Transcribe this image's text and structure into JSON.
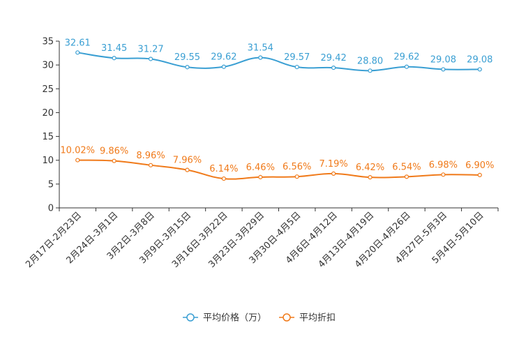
{
  "chart_data": {
    "type": "line",
    "categories": [
      "2月17日-2月23日",
      "2月24日-3月1日",
      "3月2日-3月8日",
      "3月9日-3月15日",
      "3月16日-3月22日",
      "3月23日-3月29日",
      "3月30日-4月5日",
      "4月6日-4月12日",
      "4月13日-4月19日",
      "4月20日-4月26日",
      "4月27日-5月3日",
      "5月4日-5月10日"
    ],
    "series": [
      {
        "name": "平均价格（万）",
        "color": "#3a9fd3",
        "values": [
          32.61,
          31.45,
          31.27,
          29.55,
          29.62,
          31.54,
          29.57,
          29.42,
          28.8,
          29.62,
          29.08,
          29.08
        ],
        "labels": [
          "32.61",
          "31.45",
          "31.27",
          "29.55",
          "29.62",
          "31.54",
          "29.57",
          "29.42",
          "28.80",
          "29.62",
          "29.08",
          "29.08"
        ]
      },
      {
        "name": "平均折扣",
        "color": "#f07a1a",
        "values": [
          10.02,
          9.86,
          8.96,
          7.96,
          6.14,
          6.46,
          6.56,
          7.19,
          6.42,
          6.54,
          6.98,
          6.9
        ],
        "labels": [
          "10.02%",
          "9.86%",
          "8.96%",
          "7.96%",
          "6.14%",
          "6.46%",
          "6.56%",
          "7.19%",
          "6.42%",
          "6.54%",
          "6.98%",
          "6.90%"
        ]
      }
    ],
    "yticks": [
      "0",
      "5",
      "10",
      "15",
      "20",
      "25",
      "30",
      "35"
    ],
    "ylim": [
      0,
      35
    ],
    "title": "",
    "xlabel": "",
    "ylabel": ""
  }
}
